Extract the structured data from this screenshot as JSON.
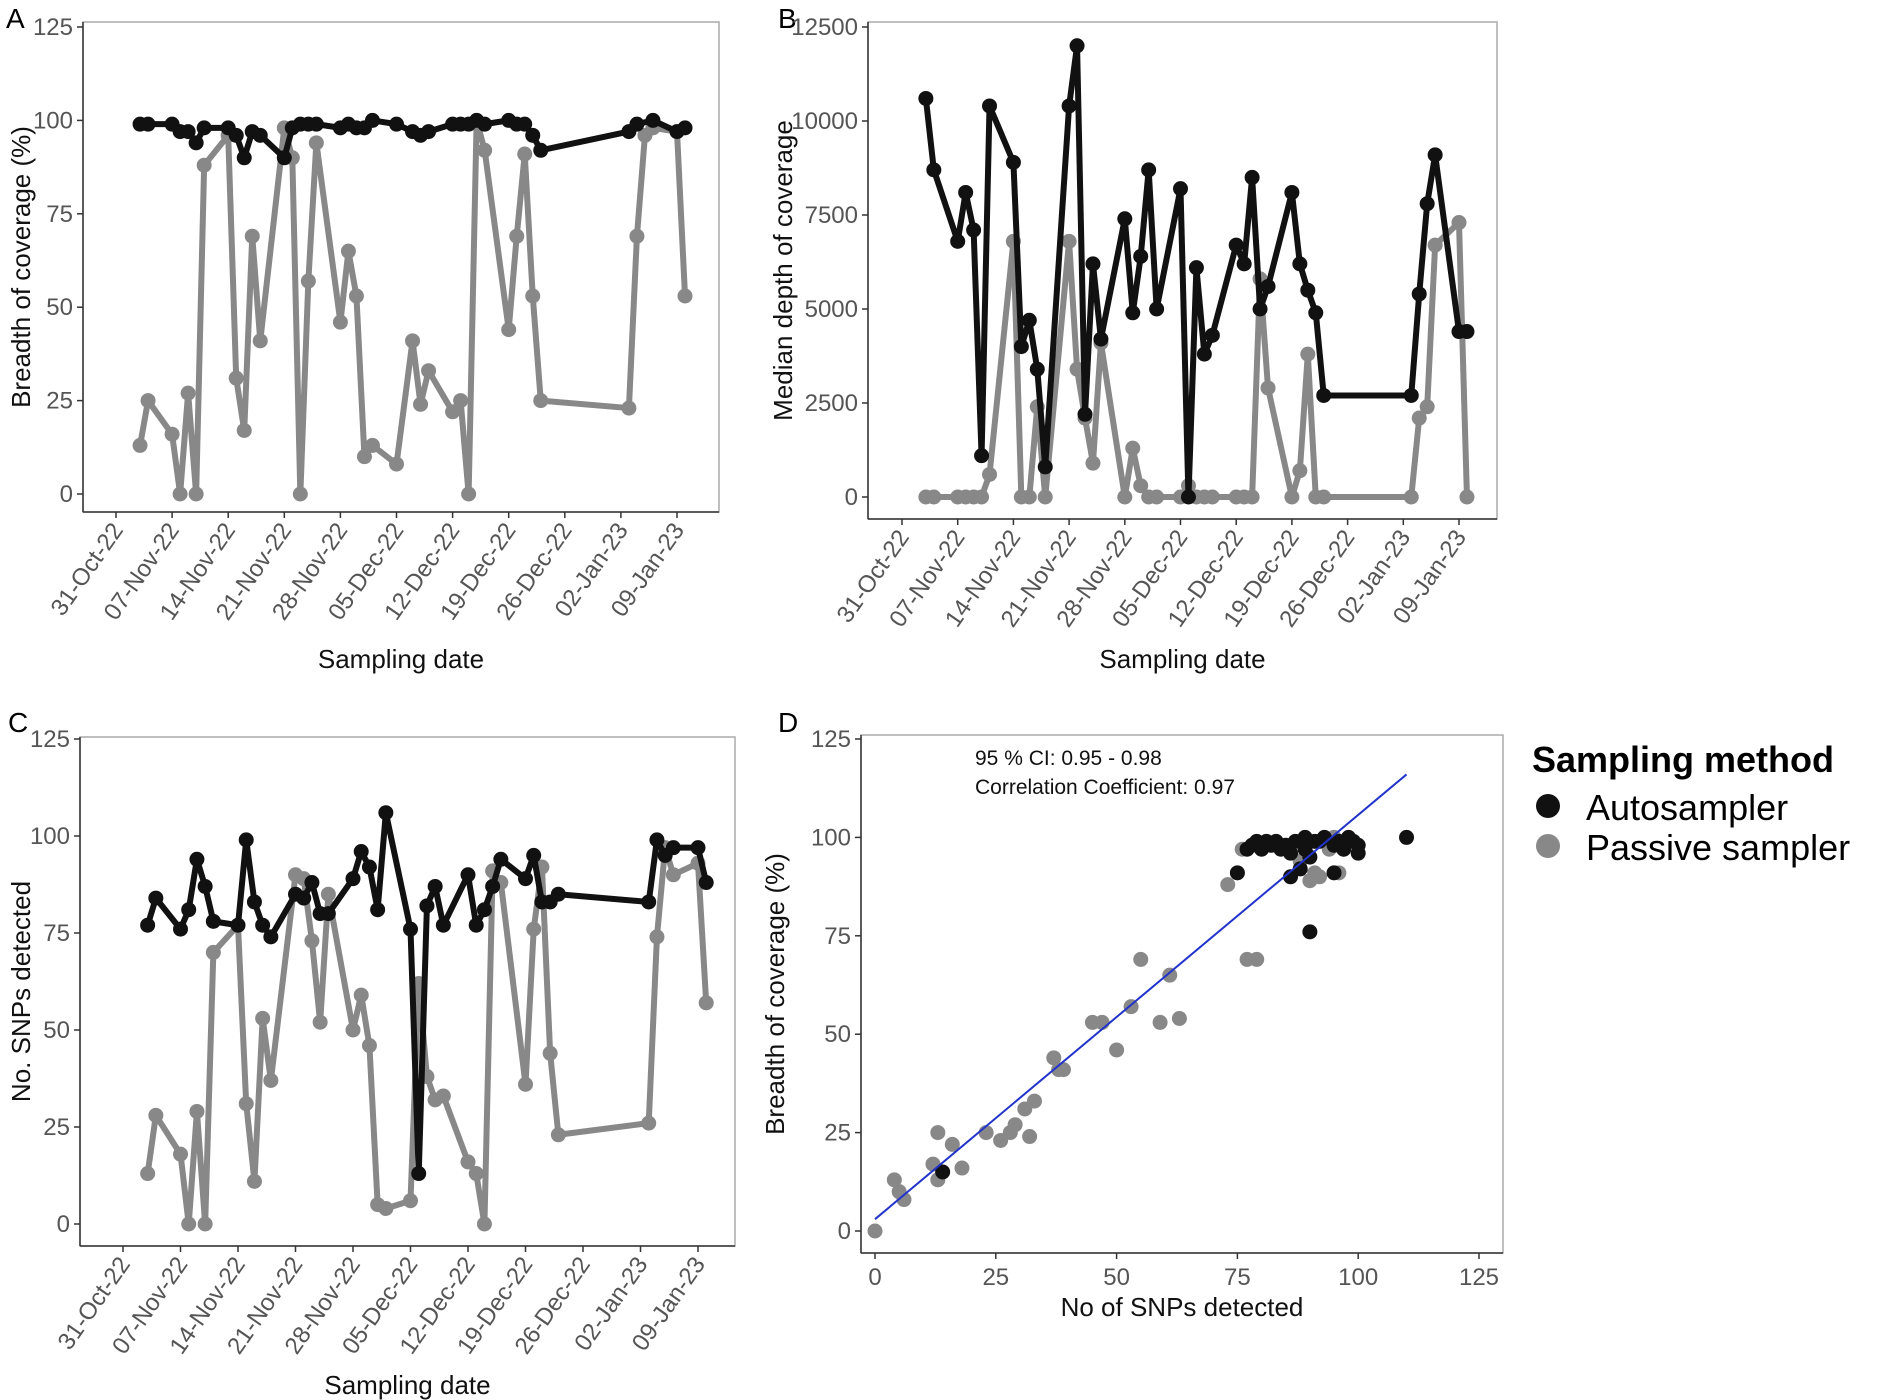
{
  "colors": {
    "autosampler": "#111111",
    "passive": "#888888",
    "fit_line": "#2233cc"
  },
  "legend": {
    "title": "Sampling method",
    "items": [
      "Autosampler",
      "Passive sampler"
    ]
  },
  "chart_data": [
    {
      "panel": "A",
      "type": "line",
      "xlabel": "Sampling date",
      "ylabel": "Breadth of coverage (%)",
      "x_unit": "days since 31-Oct-22",
      "xticks": [
        "31-Oct-22",
        "07-Nov-22",
        "14-Nov-22",
        "21-Nov-22",
        "28-Nov-22",
        "05-Dec-22",
        "12-Dec-22",
        "19-Dec-22",
        "26-Dec-22",
        "02-Jan-23",
        "09-Jan-23"
      ],
      "xlim": [
        0,
        70
      ],
      "ylim": [
        0,
        125
      ],
      "yticks": [
        0,
        25,
        50,
        75,
        100,
        125
      ],
      "series": [
        {
          "name": "Autosampler",
          "x": [
            3,
            4,
            7,
            8,
            9,
            10,
            11,
            14,
            15,
            16,
            17,
            18,
            21,
            22,
            23,
            24,
            25,
            28,
            29,
            30,
            31,
            32,
            35,
            37,
            38,
            39,
            42,
            43,
            44,
            45,
            46,
            49,
            50,
            51,
            52,
            53,
            64,
            65,
            67,
            70,
            71
          ],
          "values": [
            99,
            99,
            99,
            97,
            97,
            94,
            98,
            98,
            96,
            90,
            97,
            96,
            90,
            98,
            99,
            99,
            99,
            98,
            99,
            98,
            98,
            100,
            99,
            97,
            96,
            97,
            99,
            99,
            99,
            100,
            99,
            100,
            99,
            99,
            96,
            92,
            97,
            99,
            100,
            97,
            98
          ]
        },
        {
          "name": "Passive sampler",
          "x": [
            3,
            4,
            7,
            8,
            9,
            10,
            11,
            14,
            15,
            16,
            17,
            18,
            21,
            22,
            23,
            24,
            25,
            28,
            29,
            30,
            31,
            32,
            35,
            37,
            38,
            39,
            42,
            43,
            44,
            45,
            46,
            49,
            50,
            51,
            52,
            53,
            64,
            65,
            66,
            67,
            70,
            71
          ],
          "values": [
            13,
            25,
            16,
            0,
            27,
            0,
            88,
            96,
            31,
            17,
            69,
            41,
            98,
            90,
            0,
            57,
            94,
            46,
            65,
            53,
            10,
            13,
            8,
            41,
            24,
            33,
            22,
            25,
            0,
            100,
            92,
            44,
            69,
            91,
            53,
            25,
            23,
            69,
            96,
            98,
            97,
            53
          ]
        }
      ]
    },
    {
      "panel": "B",
      "type": "line",
      "xlabel": "Sampling date",
      "ylabel": "Median depth of coverage",
      "x_unit": "days since 31-Oct-22",
      "xticks": [
        "31-Oct-22",
        "07-Nov-22",
        "14-Nov-22",
        "21-Nov-22",
        "28-Nov-22",
        "05-Dec-22",
        "12-Dec-22",
        "19-Dec-22",
        "26-Dec-22",
        "02-Jan-23",
        "09-Jan-23"
      ],
      "xlim": [
        0,
        70
      ],
      "ylim": [
        0,
        12500
      ],
      "yticks": [
        0,
        2500,
        5000,
        7500,
        10000,
        12500
      ],
      "series": [
        {
          "name": "Autosampler",
          "x": [
            3,
            4,
            7,
            8,
            9,
            10,
            11,
            14,
            15,
            16,
            17,
            18,
            21,
            22,
            23,
            24,
            25,
            28,
            29,
            30,
            31,
            32,
            35,
            36,
            37,
            38,
            39,
            42,
            43,
            44,
            45,
            46,
            49,
            50,
            51,
            52,
            53,
            64,
            65,
            66,
            67,
            70,
            71
          ],
          "values": [
            10600,
            8700,
            6800,
            8100,
            7100,
            1100,
            10400,
            8900,
            4000,
            4700,
            3400,
            800,
            10400,
            12000,
            2200,
            6200,
            4200,
            7400,
            4900,
            6400,
            8700,
            5000,
            8200,
            0,
            6100,
            3800,
            4300,
            6700,
            6200,
            8500,
            5000,
            5600,
            8100,
            6200,
            5500,
            4900,
            2700,
            2700,
            5400,
            7800,
            9100,
            4400,
            4400
          ]
        },
        {
          "name": "Passive sampler",
          "x": [
            3,
            4,
            7,
            8,
            9,
            10,
            11,
            14,
            15,
            16,
            17,
            18,
            21,
            22,
            23,
            24,
            25,
            28,
            29,
            30,
            31,
            32,
            35,
            36,
            37,
            38,
            39,
            42,
            43,
            44,
            45,
            46,
            49,
            50,
            51,
            52,
            53,
            64,
            65,
            66,
            67,
            70,
            71
          ],
          "values": [
            0,
            0,
            0,
            0,
            0,
            0,
            600,
            6800,
            0,
            0,
            2400,
            0,
            6800,
            3400,
            2100,
            900,
            4100,
            0,
            1300,
            300,
            0,
            0,
            0,
            300,
            0,
            0,
            0,
            0,
            0,
            0,
            5800,
            2900,
            0,
            700,
            3800,
            0,
            0,
            0,
            2100,
            2400,
            6700,
            7300,
            0
          ]
        }
      ]
    },
    {
      "panel": "C",
      "type": "line",
      "xlabel": "Sampling date",
      "ylabel": "No. SNPs detected",
      "x_unit": "days since 31-Oct-22",
      "xticks": [
        "31-Oct-22",
        "07-Nov-22",
        "14-Nov-22",
        "21-Nov-22",
        "28-Nov-22",
        "05-Dec-22",
        "12-Dec-22",
        "19-Dec-22",
        "26-Dec-22",
        "02-Jan-23",
        "09-Jan-23"
      ],
      "xlim": [
        0,
        70
      ],
      "ylim": [
        0,
        125
      ],
      "yticks": [
        0,
        25,
        50,
        75,
        100,
        125
      ],
      "series": [
        {
          "name": "Autosampler",
          "x": [
            3,
            4,
            7,
            8,
            9,
            10,
            11,
            14,
            15,
            16,
            17,
            18,
            21,
            22,
            23,
            24,
            25,
            28,
            29,
            30,
            31,
            32,
            35,
            36,
            37,
            38,
            39,
            42,
            43,
            44,
            45,
            46,
            49,
            50,
            51,
            52,
            53,
            64,
            65,
            66,
            67,
            70,
            71
          ],
          "values": [
            77,
            84,
            76,
            81,
            94,
            87,
            78,
            77,
            99,
            83,
            77,
            74,
            85,
            84,
            88,
            80,
            80,
            89,
            96,
            92,
            81,
            106,
            76,
            13,
            82,
            87,
            77,
            90,
            77,
            81,
            87,
            94,
            89,
            95,
            83,
            83,
            85,
            83,
            99,
            95,
            97,
            97,
            88
          ]
        },
        {
          "name": "Passive sampler",
          "x": [
            3,
            4,
            7,
            8,
            9,
            10,
            11,
            14,
            15,
            16,
            17,
            18,
            21,
            22,
            23,
            24,
            25,
            28,
            29,
            30,
            31,
            32,
            35,
            36,
            37,
            38,
            39,
            42,
            43,
            44,
            45,
            46,
            49,
            50,
            51,
            52,
            53,
            64,
            65,
            66,
            67,
            70,
            71
          ],
          "values": [
            13,
            28,
            18,
            0,
            29,
            0,
            70,
            77,
            31,
            11,
            53,
            37,
            90,
            89,
            73,
            52,
            85,
            50,
            59,
            46,
            5,
            4,
            6,
            62,
            38,
            32,
            33,
            16,
            13,
            0,
            91,
            88,
            36,
            76,
            92,
            44,
            23,
            26,
            74,
            97,
            90,
            93,
            57
          ]
        }
      ]
    },
    {
      "panel": "D",
      "type": "scatter",
      "xlabel": "No of SNPs detected",
      "ylabel": "Breadth of coverage (%)",
      "xlim": [
        0,
        125
      ],
      "ylim": [
        0,
        125
      ],
      "xticks": [
        0,
        25,
        50,
        75,
        100,
        125
      ],
      "yticks": [
        0,
        25,
        50,
        75,
        100,
        125
      ],
      "annotations": [
        "95 % CI: 0.95 - 0.98",
        "Correlation Coefficient: 0.97"
      ],
      "fit_line": {
        "x": [
          0,
          110
        ],
        "y": [
          3,
          116
        ]
      },
      "series": [
        {
          "name": "Autosampler",
          "points": [
            [
              14,
              15
            ],
            [
              75,
              91
            ],
            [
              77,
              97
            ],
            [
              78,
              98
            ],
            [
              79,
              99
            ],
            [
              80,
              97
            ],
            [
              81,
              99
            ],
            [
              82,
              98
            ],
            [
              83,
              99
            ],
            [
              84,
              97
            ],
            [
              85,
              98
            ],
            [
              86,
              90
            ],
            [
              86,
              96
            ],
            [
              87,
              99
            ],
            [
              88,
              92
            ],
            [
              89,
              97
            ],
            [
              89,
              100
            ],
            [
              90,
              95
            ],
            [
              90,
              76
            ],
            [
              91,
              99
            ],
            [
              92,
              99
            ],
            [
              93,
              100
            ],
            [
              95,
              91
            ],
            [
              95,
              98
            ],
            [
              96,
              99
            ],
            [
              97,
              97
            ],
            [
              98,
              100
            ],
            [
              99,
              99
            ],
            [
              100,
              96
            ],
            [
              100,
              98
            ],
            [
              110,
              100
            ]
          ]
        },
        {
          "name": "Passive sampler",
          "points": [
            [
              0,
              0
            ],
            [
              4,
              13
            ],
            [
              5,
              10
            ],
            [
              6,
              8
            ],
            [
              12,
              17
            ],
            [
              13,
              25
            ],
            [
              13,
              13
            ],
            [
              16,
              22
            ],
            [
              18,
              16
            ],
            [
              23,
              25
            ],
            [
              26,
              23
            ],
            [
              28,
              25
            ],
            [
              29,
              27
            ],
            [
              31,
              31
            ],
            [
              32,
              24
            ],
            [
              33,
              33
            ],
            [
              37,
              44
            ],
            [
              38,
              41
            ],
            [
              39,
              41
            ],
            [
              45,
              53
            ],
            [
              47,
              53
            ],
            [
              50,
              46
            ],
            [
              53,
              57
            ],
            [
              55,
              69
            ],
            [
              59,
              53
            ],
            [
              61,
              65
            ],
            [
              63,
              54
            ],
            [
              73,
              88
            ],
            [
              76,
              97
            ],
            [
              77,
              69
            ],
            [
              79,
              69
            ],
            [
              88,
              94
            ],
            [
              90,
              89
            ],
            [
              91,
              91
            ],
            [
              92,
              90
            ],
            [
              94,
              97
            ],
            [
              95,
              100
            ],
            [
              96,
              91
            ],
            [
              97,
              97
            ]
          ]
        }
      ]
    }
  ]
}
